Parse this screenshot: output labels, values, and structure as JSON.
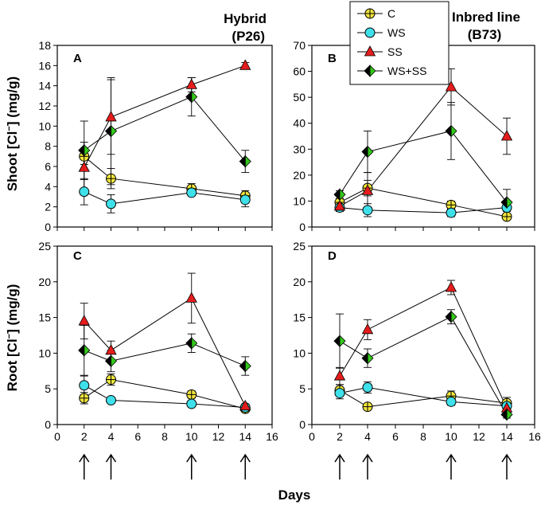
{
  "figure": {
    "xlabel": "Days",
    "shoot_ylabel_pre": "Shoot [Cl",
    "shoot_ylabel_post": "] (mg/g)",
    "root_ylabel_pre": "Root [Cl",
    "root_ylabel_post": "] (mg/g)",
    "superscript": "−",
    "col1_title_line1": "Hybrid",
    "col1_title_line2": "(P26)",
    "col2_title_line1": "Inbred line",
    "col2_title_line2": "(B73)",
    "arrow_days": [
      2,
      4,
      10,
      14
    ]
  },
  "legend": [
    {
      "name": "C",
      "marker": "circle-cross",
      "color": "#f2e63c"
    },
    {
      "name": "WS",
      "marker": "circle",
      "color": "#3ee0ea"
    },
    {
      "name": "SS",
      "marker": "triangle",
      "color": "#e51c1c"
    },
    {
      "name": "WS+SS",
      "marker": "diamond-half",
      "color": "#33c81a"
    }
  ],
  "chart_data": [
    {
      "type": "line",
      "panel": "A",
      "xlim": [
        0,
        16
      ],
      "ylim": [
        0,
        18
      ],
      "xticks": [
        0,
        2,
        4,
        6,
        8,
        10,
        12,
        14,
        16
      ],
      "yticks": [
        0,
        2,
        4,
        6,
        8,
        10,
        12,
        14,
        16,
        18
      ],
      "x": [
        2,
        4,
        10,
        14
      ],
      "series": [
        {
          "name": "C",
          "values": [
            7.0,
            4.8,
            3.8,
            3.1
          ],
          "errors": [
            0.8,
            1.0,
            0.5,
            0.5
          ]
        },
        {
          "name": "WS",
          "values": [
            3.5,
            2.3,
            3.4,
            2.7
          ],
          "errors": [
            1.3,
            0.9,
            0.3,
            0.7
          ]
        },
        {
          "name": "SS",
          "values": [
            5.9,
            10.9,
            14.1,
            16.0
          ],
          "errors": [
            2.5,
            3.7,
            0.7,
            0.3
          ]
        },
        {
          "name": "WS+SS",
          "values": [
            7.6,
            9.5,
            12.9,
            6.5
          ],
          "errors": [
            2.9,
            5.3,
            1.9,
            1.1
          ]
        }
      ]
    },
    {
      "type": "line",
      "panel": "B",
      "xlim": [
        0,
        16
      ],
      "ylim": [
        0,
        70
      ],
      "xticks": [
        0,
        2,
        4,
        6,
        8,
        10,
        12,
        14,
        16
      ],
      "yticks": [
        0,
        10,
        20,
        30,
        40,
        50,
        60,
        70
      ],
      "x": [
        2,
        4,
        10,
        14
      ],
      "series": [
        {
          "name": "C",
          "values": [
            9.5,
            15.0,
            8.5,
            4.0
          ],
          "errors": [
            1.5,
            3.0,
            1.5,
            1.0
          ]
        },
        {
          "name": "WS",
          "values": [
            7.5,
            6.5,
            5.5,
            7.5
          ],
          "errors": [
            1.5,
            2.5,
            1.5,
            1.5
          ]
        },
        {
          "name": "SS",
          "values": [
            8.0,
            14.0,
            54.0,
            35.0
          ],
          "errors": [
            1.5,
            7.0,
            7.0,
            7.0
          ]
        },
        {
          "name": "WS+SS",
          "values": [
            12.5,
            29.0,
            37.0,
            9.5
          ],
          "errors": [
            1.5,
            8.0,
            11.0,
            5.0
          ]
        }
      ]
    },
    {
      "type": "line",
      "panel": "C",
      "xlim": [
        0,
        16
      ],
      "ylim": [
        0,
        25
      ],
      "xticks": [
        0,
        2,
        4,
        6,
        8,
        10,
        12,
        14,
        16
      ],
      "yticks": [
        0,
        5,
        10,
        15,
        20,
        25
      ],
      "x": [
        2,
        4,
        10,
        14
      ],
      "series": [
        {
          "name": "C",
          "values": [
            3.7,
            6.3,
            4.2,
            2.2
          ],
          "errors": [
            0.8,
            0.8,
            0.5,
            0.3
          ]
        },
        {
          "name": "WS",
          "values": [
            5.5,
            3.4,
            2.9,
            2.4
          ],
          "errors": [
            1.3,
            0.3,
            0.3,
            0.3
          ]
        },
        {
          "name": "SS",
          "values": [
            14.5,
            10.4,
            17.7,
            2.6
          ],
          "errors": [
            2.5,
            1.3,
            3.5,
            0.3
          ]
        },
        {
          "name": "WS+SS",
          "values": [
            10.4,
            8.9,
            11.4,
            8.2
          ],
          "errors": [
            3.5,
            1.5,
            1.3,
            1.3
          ]
        }
      ]
    },
    {
      "type": "line",
      "panel": "D",
      "xlim": [
        0,
        16
      ],
      "ylim": [
        0,
        25
      ],
      "xticks": [
        0,
        2,
        4,
        6,
        8,
        10,
        12,
        14,
        16
      ],
      "yticks": [
        0,
        5,
        10,
        15,
        20,
        25
      ],
      "x": [
        2,
        4,
        10,
        14
      ],
      "series": [
        {
          "name": "C",
          "values": [
            4.8,
            2.5,
            4.0,
            3.0
          ],
          "errors": [
            0.8,
            0.4,
            0.7,
            0.8
          ]
        },
        {
          "name": "WS",
          "values": [
            4.4,
            5.2,
            3.2,
            2.6
          ],
          "errors": [
            0.8,
            0.8,
            0.5,
            0.6
          ]
        },
        {
          "name": "SS",
          "values": [
            6.8,
            13.3,
            19.2,
            2.3
          ],
          "errors": [
            1.2,
            1.4,
            1.0,
            0.4
          ]
        },
        {
          "name": "WS+SS",
          "values": [
            11.7,
            9.3,
            15.1,
            1.4
          ],
          "errors": [
            3.8,
            1.3,
            1.0,
            0.5
          ]
        }
      ]
    }
  ]
}
